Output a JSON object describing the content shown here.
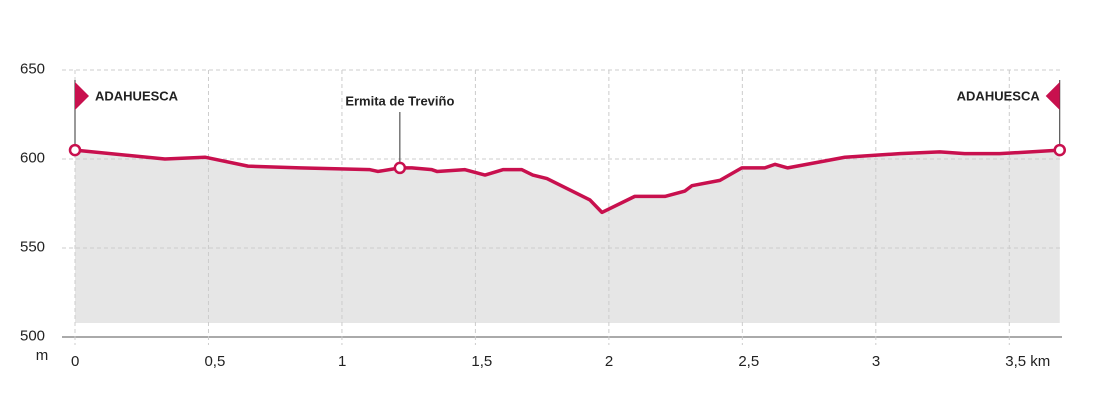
{
  "chart_data": {
    "type": "area",
    "y_unit": "m",
    "x": [
      0,
      0.337,
      0.487,
      0.648,
      0.843,
      1.105,
      1.135,
      1.217,
      1.262,
      1.337,
      1.356,
      1.461,
      1.536,
      1.603,
      1.674,
      1.715,
      1.768,
      1.929,
      1.974,
      2.097,
      2.21,
      2.285,
      2.311,
      2.416,
      2.498,
      2.584,
      2.622,
      2.67,
      2.884,
      3.09,
      3.24,
      3.333,
      3.464,
      3.689
    ],
    "series": [
      {
        "color": "#c8104e",
        "fill": "#e6e6e6",
        "values": [
          605,
          600,
          601,
          596,
          595,
          594,
          593,
          595,
          595,
          594,
          593,
          594,
          591,
          594,
          594,
          591,
          589,
          577,
          570,
          579,
          579,
          582,
          585,
          588,
          595,
          595,
          597,
          595,
          601,
          603,
          604,
          603,
          603,
          605
        ]
      }
    ],
    "markers": [
      {
        "label": "ADAHUESCA",
        "x": 0,
        "elevation": 605,
        "style": "flag-right"
      },
      {
        "label": "Ermita de Treviño",
        "x": 1.217,
        "elevation": 595,
        "style": "pin"
      },
      {
        "label": "ADAHUESCA",
        "x": 3.689,
        "elevation": 605,
        "style": "flag-left"
      }
    ],
    "xlim": [
      0,
      3.69
    ],
    "ylim": [
      500,
      650
    ],
    "xticks": [
      0,
      {
        "value": 0.5,
        "label": "0,5"
      },
      1,
      {
        "value": 1.5,
        "label": "1,5"
      },
      2,
      {
        "value": 2.5,
        "label": "2,5"
      },
      3,
      {
        "value": 3.5,
        "label": "3,5 km"
      }
    ],
    "yticks": [
      500,
      550,
      600,
      650
    ],
    "grid": true
  }
}
